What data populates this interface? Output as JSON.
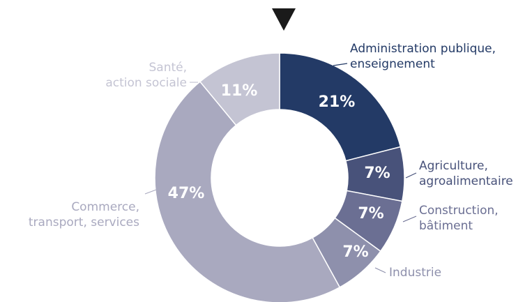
{
  "chart_data": {
    "type": "donut",
    "categories": [
      [
        "Administration publique,",
        "enseignement"
      ],
      [
        "Agriculture,",
        "agroalimentaire"
      ],
      [
        "Construction,",
        "bâtiment"
      ],
      [
        "Industrie"
      ],
      [
        "Commerce,",
        "transport, services"
      ],
      [
        "Santé,",
        "action sociale"
      ]
    ],
    "values": [
      21,
      7,
      7,
      7,
      47,
      11
    ],
    "value_labels": [
      "21%",
      "7%",
      "7%",
      "7%",
      "47%",
      "11%"
    ],
    "colors": [
      "#233a66",
      "#48527a",
      "#6b6f93",
      "#8e90ac",
      "#a9a9bf",
      "#c4c4d3"
    ]
  }
}
